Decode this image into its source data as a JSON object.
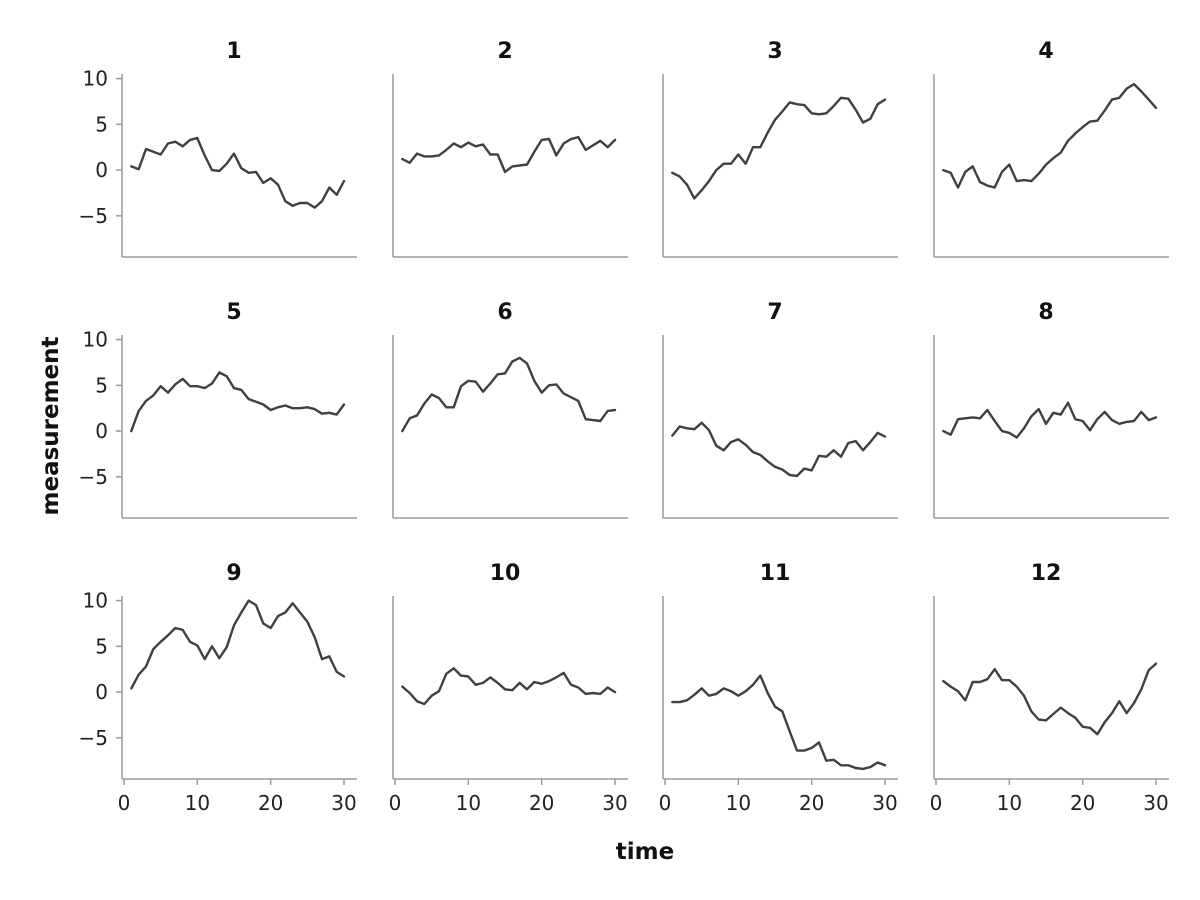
{
  "chart_data": {
    "type": "line",
    "xlabel": "time",
    "ylabel": "measurement",
    "xlim": [
      0,
      30
    ],
    "ylim": [
      -9.5,
      10.5
    ],
    "x_ticks": [
      0,
      10,
      20,
      30
    ],
    "y_ticks": [
      10,
      5,
      0,
      -5
    ],
    "grid": false,
    "colors": {
      "line": "#404040"
    },
    "x": [
      1,
      2,
      3,
      4,
      5,
      6,
      7,
      8,
      9,
      10,
      11,
      12,
      13,
      14,
      15,
      16,
      17,
      18,
      19,
      20,
      21,
      22,
      23,
      24,
      25,
      26,
      27,
      28,
      29,
      30
    ],
    "series": [
      {
        "name": "1",
        "values": [
          0.4,
          0.1,
          2.3,
          2.0,
          1.7,
          2.9,
          3.1,
          2.6,
          3.3,
          3.5,
          1.6,
          0.0,
          -0.1,
          0.7,
          1.8,
          0.2,
          -0.3,
          -0.2,
          -1.4,
          -0.9,
          -1.6,
          -3.4,
          -3.9,
          -3.6,
          -3.6,
          -4.1,
          -3.4,
          -1.9,
          -2.7,
          -1.2
        ]
      },
      {
        "name": "2",
        "values": [
          1.2,
          0.8,
          1.8,
          1.5,
          1.5,
          1.6,
          2.2,
          2.9,
          2.5,
          3.0,
          2.6,
          2.8,
          1.7,
          1.7,
          -0.2,
          0.4,
          0.5,
          0.6,
          2.0,
          3.3,
          3.4,
          1.6,
          2.9,
          3.4,
          3.6,
          2.2,
          2.7,
          3.2,
          2.5,
          3.3
        ]
      },
      {
        "name": "3",
        "values": [
          -0.3,
          -0.7,
          -1.6,
          -3.1,
          -2.2,
          -1.2,
          0.0,
          0.7,
          0.7,
          1.7,
          0.7,
          2.5,
          2.5,
          4.1,
          5.5,
          6.4,
          7.4,
          7.2,
          7.1,
          6.2,
          6.1,
          6.2,
          7.0,
          7.9,
          7.8,
          6.6,
          5.2,
          5.6,
          7.2,
          7.7
        ]
      },
      {
        "name": "4",
        "values": [
          0.0,
          -0.3,
          -1.9,
          -0.2,
          0.4,
          -1.3,
          -1.7,
          -1.9,
          -0.2,
          0.6,
          -1.2,
          -1.1,
          -1.2,
          -0.4,
          0.6,
          1.3,
          1.9,
          3.2,
          4.0,
          4.7,
          5.3,
          5.4,
          6.5,
          7.7,
          7.9,
          8.9,
          9.4,
          8.6,
          7.7,
          6.8
        ]
      },
      {
        "name": "5",
        "values": [
          0.0,
          2.2,
          3.3,
          3.9,
          4.9,
          4.2,
          5.1,
          5.7,
          4.9,
          4.9,
          4.7,
          5.2,
          6.4,
          6.0,
          4.7,
          4.5,
          3.5,
          3.2,
          2.9,
          2.3,
          2.6,
          2.8,
          2.5,
          2.5,
          2.6,
          2.4,
          1.9,
          2.0,
          1.8,
          2.9
        ]
      },
      {
        "name": "6",
        "values": [
          0.0,
          1.4,
          1.7,
          3.0,
          4.0,
          3.6,
          2.6,
          2.6,
          4.9,
          5.5,
          5.4,
          4.3,
          5.2,
          6.2,
          6.3,
          7.6,
          8.0,
          7.4,
          5.5,
          4.2,
          5.0,
          5.1,
          4.1,
          3.7,
          3.3,
          1.3,
          1.2,
          1.1,
          2.2,
          2.3
        ]
      },
      {
        "name": "7",
        "values": [
          -0.5,
          0.5,
          0.3,
          0.2,
          0.9,
          0.1,
          -1.6,
          -2.1,
          -1.2,
          -0.9,
          -1.5,
          -2.3,
          -2.6,
          -3.3,
          -3.9,
          -4.2,
          -4.8,
          -4.9,
          -4.1,
          -4.3,
          -2.7,
          -2.8,
          -2.1,
          -2.8,
          -1.3,
          -1.1,
          -2.1,
          -1.2,
          -0.2,
          -0.6
        ]
      },
      {
        "name": "8",
        "values": [
          0.0,
          -0.4,
          1.3,
          1.4,
          1.5,
          1.4,
          2.3,
          1.1,
          0.0,
          -0.2,
          -0.7,
          0.3,
          1.6,
          2.4,
          0.8,
          2.0,
          1.8,
          3.1,
          1.3,
          1.1,
          0.1,
          1.3,
          2.1,
          1.2,
          0.8,
          1.0,
          1.1,
          2.1,
          1.2,
          1.5
        ]
      },
      {
        "name": "9",
        "values": [
          0.4,
          1.9,
          2.8,
          4.7,
          5.5,
          6.2,
          7.0,
          6.8,
          5.5,
          5.1,
          3.6,
          5.0,
          3.7,
          4.9,
          7.3,
          8.7,
          10.0,
          9.5,
          7.5,
          7.0,
          8.3,
          8.7,
          9.7,
          8.7,
          7.7,
          6.0,
          3.6,
          3.9,
          2.2,
          1.7
        ]
      },
      {
        "name": "10",
        "values": [
          0.6,
          -0.1,
          -1.0,
          -1.3,
          -0.4,
          0.1,
          2.0,
          2.6,
          1.8,
          1.7,
          0.8,
          1.0,
          1.6,
          1.0,
          0.3,
          0.2,
          1.0,
          0.3,
          1.1,
          0.9,
          1.2,
          1.6,
          2.1,
          0.8,
          0.5,
          -0.2,
          -0.1,
          -0.2,
          0.5,
          0.0
        ]
      },
      {
        "name": "11",
        "values": [
          -1.1,
          -1.1,
          -0.9,
          -0.3,
          0.4,
          -0.4,
          -0.2,
          0.4,
          0.1,
          -0.4,
          0.1,
          0.8,
          1.8,
          -0.1,
          -1.6,
          -2.1,
          -4.3,
          -6.4,
          -6.4,
          -6.1,
          -5.5,
          -7.5,
          -7.4,
          -8.0,
          -8.0,
          -8.3,
          -8.4,
          -8.2,
          -7.7,
          -8.0
        ]
      },
      {
        "name": "12",
        "values": [
          1.2,
          0.6,
          0.1,
          -0.9,
          1.1,
          1.1,
          1.4,
          2.5,
          1.3,
          1.3,
          0.6,
          -0.4,
          -2.1,
          -3.0,
          -3.1,
          -2.4,
          -1.7,
          -2.3,
          -2.8,
          -3.8,
          -3.9,
          -4.6,
          -3.3,
          -2.3,
          -1.0,
          -2.3,
          -1.2,
          0.3,
          2.4,
          3.1
        ]
      }
    ]
  }
}
